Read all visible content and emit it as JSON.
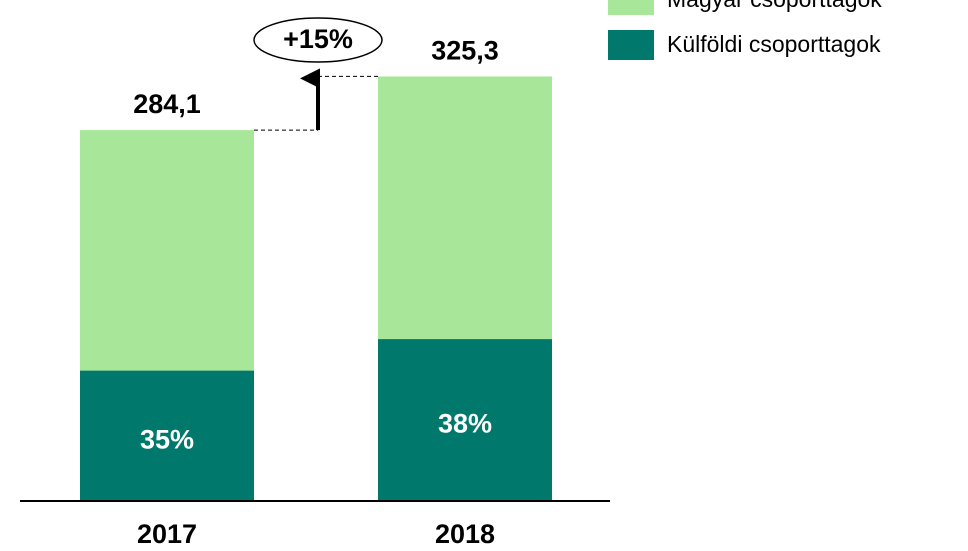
{
  "chart_data": {
    "type": "bar",
    "stacked": true,
    "categories": [
      "2017",
      "2018"
    ],
    "series": [
      {
        "name": "Külföldi csoporttagok",
        "color": "#00786c",
        "values": [
          99.4,
          123.6
        ]
      },
      {
        "name": "Magyar csoporttagok",
        "color": "#a8e69a",
        "values": [
          184.7,
          201.7
        ]
      }
    ],
    "totals": [
      284.1,
      325.3
    ],
    "total_labels": [
      "284,1",
      "325,3"
    ],
    "shares": [
      35,
      38
    ],
    "share_labels": [
      "35%",
      "38%"
    ],
    "annotation": "+15%",
    "ylim": [
      0,
      384
    ]
  }
}
